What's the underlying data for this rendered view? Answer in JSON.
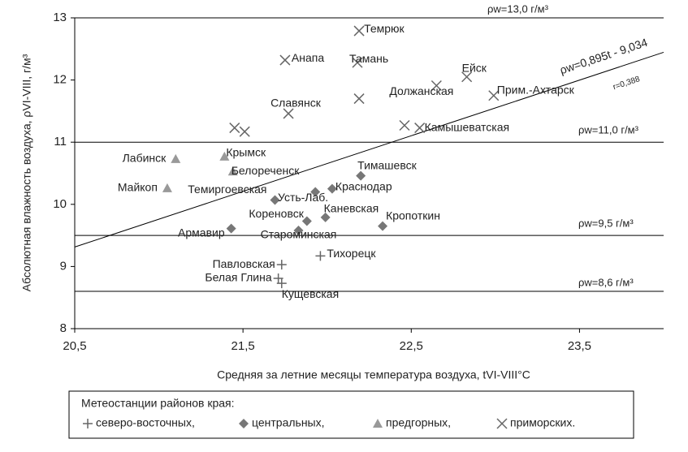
{
  "chart_data": {
    "type": "scatter",
    "xlabel": "Средняя за летние месяцы температура воздуха, tVI-VIII°C",
    "ylabel": "Абсолютная влажность воздуха, ρVI-VIII, г/м³",
    "xlim": [
      20.5,
      24.0
    ],
    "ylim": [
      8,
      13
    ],
    "xticks": [
      {
        "value": 20.5,
        "label": "20,5"
      },
      {
        "value": 21.5,
        "label": "21,5"
      },
      {
        "value": 22.5,
        "label": "22,5"
      },
      {
        "value": 23.5,
        "label": "23,5"
      }
    ],
    "yticks": [
      8,
      9,
      10,
      11,
      12,
      13
    ],
    "hlines": [
      {
        "value": 13.0,
        "label": "ρw=13,0 г/м³"
      },
      {
        "value": 11.0,
        "label": "ρw=11,0 г/м³"
      },
      {
        "value": 9.5,
        "label": "ρw=9,5 г/м³"
      },
      {
        "value": 8.6,
        "label": "ρw=8,6 г/м³"
      }
    ],
    "trendline": {
      "slope": 0.895,
      "intercept": -9.034,
      "label": "ρw=0,895t - 9,034",
      "r_label": "r=0,388"
    },
    "legend_title": "Метеостанции районов края:",
    "series": [
      {
        "name": "северо-восточных,",
        "marker": "plus",
        "color": "#666666",
        "x": [
          21.73,
          21.96,
          21.71,
          21.73
        ],
        "y": [
          9.03,
          9.17,
          8.81,
          8.73
        ],
        "labels": [
          "Павловская",
          "Тихорецк",
          "Белая Глина",
          "Кущевская"
        ]
      },
      {
        "name": "центральных,",
        "marker": "diamond",
        "color": "#777777",
        "x": [
          21.43,
          21.83,
          21.88,
          21.99,
          22.33,
          21.69,
          21.93,
          22.03,
          22.2
        ],
        "y": [
          9.61,
          9.58,
          9.73,
          9.79,
          9.65,
          10.07,
          10.2,
          10.25,
          10.46
        ],
        "labels": [
          "Армавир",
          "Староминская",
          "Кореновск",
          "Каневская",
          "Кропоткин",
          "Темиргоевская",
          "Усть-Лаб.",
          "Краснодар",
          "Тимашевск"
        ]
      },
      {
        "name": "предгорных,",
        "marker": "triangle",
        "color": "#999999",
        "x": [
          21.1,
          21.05,
          21.39,
          21.44
        ],
        "y": [
          10.73,
          10.26,
          10.77,
          10.53
        ],
        "labels": [
          "Лабинск",
          "Майкоп",
          "Крымск",
          "Белореченск"
        ]
      },
      {
        "name": "приморских.",
        "marker": "cross",
        "color": "#666666",
        "x": [
          22.19,
          21.75,
          22.18,
          22.83,
          22.65,
          22.99,
          21.77,
          22.19,
          22.55,
          22.46,
          21.45,
          21.51
        ],
        "y": [
          12.79,
          12.32,
          12.28,
          12.05,
          11.91,
          11.75,
          11.46,
          11.7,
          11.23,
          11.27,
          11.23,
          11.17
        ],
        "labels": [
          "Темрюк",
          "Анапа",
          "Тамань",
          "Ейск",
          "Должанская",
          "Прим.-Ахтарск",
          "Славянск",
          null,
          "Камышеватская",
          null,
          null,
          null
        ]
      }
    ]
  }
}
